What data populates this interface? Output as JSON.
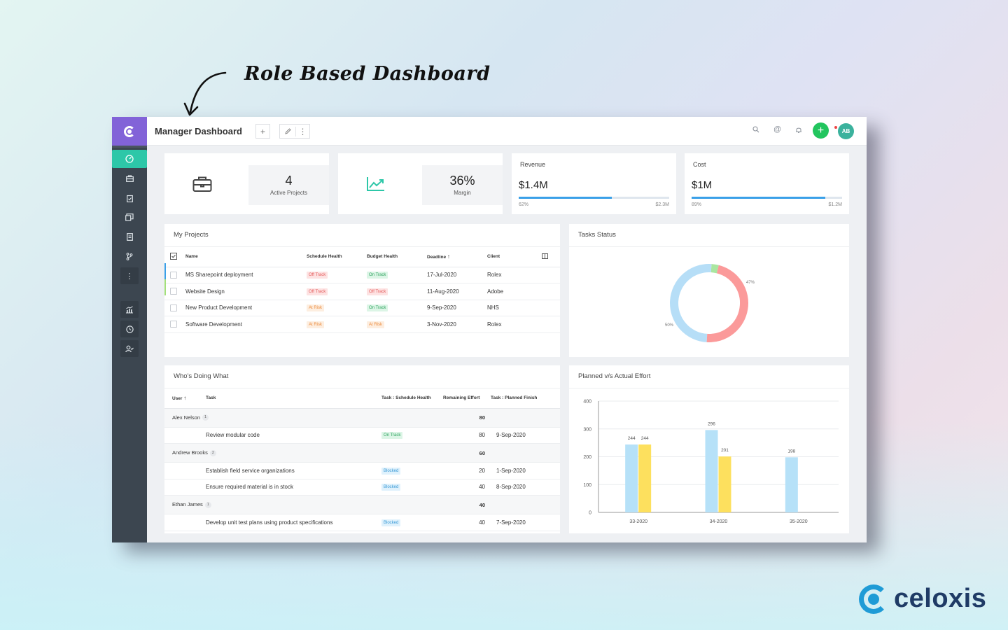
{
  "headline": "Role Based Dashboard",
  "brand": {
    "name": "celoxis",
    "color": "#1f3b66",
    "mark_color": "#1f9bd6"
  },
  "topbar": {
    "title": "Manager Dashboard",
    "add_label": "+",
    "edit_icon": "pencil-icon",
    "more_label": "⋮",
    "avatar_initials": "AB",
    "plus_label": "+"
  },
  "sidebar": {
    "items": [
      "dashboard-icon",
      "briefcase-icon",
      "clipboard-icon",
      "reports-icon",
      "document-icon",
      "branch-icon",
      "more-icon",
      "analytics-icon",
      "clock-icon",
      "user-check-icon"
    ]
  },
  "kpis": [
    {
      "value": "4",
      "label": "Active Projects",
      "icon": "briefcase-icon"
    },
    {
      "value": "36%",
      "label": "Margin",
      "icon": "trend-up-icon"
    }
  ],
  "revenue": {
    "title": "Revenue",
    "value": "$1.4M",
    "pct": "62%",
    "fraction": 0.62,
    "total": "$2.3M"
  },
  "cost": {
    "title": "Cost",
    "value": "$1M",
    "pct": "89%",
    "fraction": 0.89,
    "total": "$1.2M"
  },
  "projects": {
    "title": "My Projects",
    "columns": [
      "Name",
      "Schedule Health",
      "Budget Health",
      "Deadline",
      "Client"
    ],
    "rows": [
      {
        "name": "MS Sharepoint deployment",
        "schedule": "Off Track",
        "budget": "On Track",
        "deadline": "17-Jul-2020",
        "client": "Rolex",
        "accent": "#3aa0e8"
      },
      {
        "name": "Website Design",
        "schedule": "Off Track",
        "budget": "Off Track",
        "deadline": "11-Aug-2020",
        "client": "Adobe",
        "accent": "#a3e07a"
      },
      {
        "name": "New Product Development",
        "schedule": "At Risk",
        "budget": "On Track",
        "deadline": "9-Sep-2020",
        "client": "NHS",
        "accent": ""
      },
      {
        "name": "Software Development",
        "schedule": "At Risk",
        "budget": "At Risk",
        "deadline": "3-Nov-2020",
        "client": "Rolex",
        "accent": ""
      }
    ]
  },
  "tasks_status": {
    "title": "Tasks Status",
    "label_a": "47%",
    "label_b": "50%"
  },
  "whos_doing": {
    "title": "Who's Doing What",
    "columns": [
      "User",
      "Task",
      "Task : Schedule Health",
      "Remaining Effort",
      "Task : Planned Finish"
    ],
    "groups": [
      {
        "user": "Alex Nelson",
        "count": "1",
        "effort": "80",
        "tasks": [
          {
            "task": "Review modular code",
            "health": "On Track",
            "effort": "80",
            "finish": "9-Sep-2020"
          }
        ]
      },
      {
        "user": "Andrew Brooks",
        "count": "2",
        "effort": "60",
        "tasks": [
          {
            "task": "Establish field service organizations",
            "health": "Blocked",
            "effort": "20",
            "finish": "1-Sep-2020"
          },
          {
            "task": "Ensure required material is in stock",
            "health": "Blocked",
            "effort": "40",
            "finish": "8-Sep-2020"
          }
        ]
      },
      {
        "user": "Ethan James",
        "count": "1",
        "effort": "40",
        "tasks": [
          {
            "task": "Develop unit test plans using product specifications",
            "health": "Blocked",
            "effort": "40",
            "finish": "7-Sep-2020"
          }
        ]
      }
    ]
  },
  "chart_data": [
    {
      "type": "pie",
      "title": "Tasks Status",
      "slices": [
        {
          "label": "47%",
          "value": 47,
          "color": "#fb9a9a"
        },
        {
          "label": "50%",
          "value": 50,
          "color": "#b6def7"
        },
        {
          "label": "",
          "value": 3,
          "color": "#a9e6a0"
        }
      ]
    },
    {
      "type": "bar",
      "title": "Planned v/s Actual Effort",
      "categories": [
        "33-2020",
        "34-2020",
        "35-2020"
      ],
      "series": [
        {
          "values": [
            244,
            296,
            198
          ],
          "color": "#b6e1f8"
        },
        {
          "values": [
            244,
            201,
            0
          ],
          "color": "#fde05e"
        }
      ],
      "yticks": [
        "0",
        "100",
        "200",
        "300",
        "400"
      ],
      "ylim": [
        0,
        400
      ],
      "grid": true
    }
  ]
}
